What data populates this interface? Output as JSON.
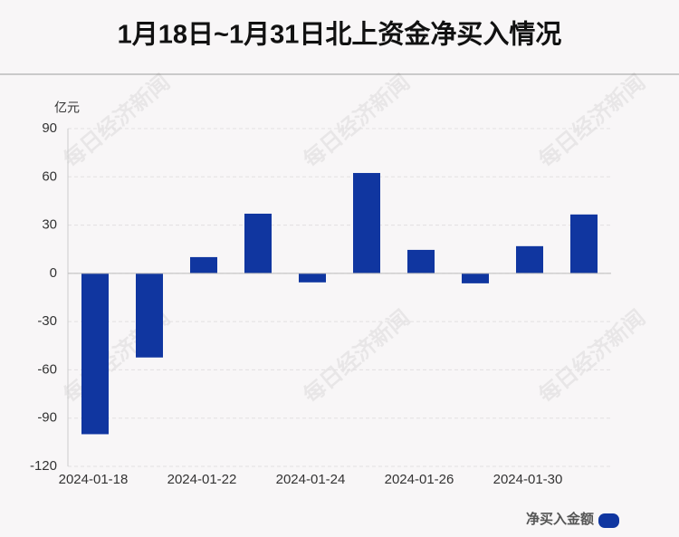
{
  "chart_data": {
    "type": "bar",
    "title": "1月18日~1月31日北上资金净买入情况",
    "y_unit": "亿元",
    "watermark": "每日经济新闻",
    "categories": [
      "2024-01-18",
      null,
      "2024-01-22",
      null,
      "2024-01-24",
      null,
      "2024-01-26",
      null,
      "2024-01-30",
      null
    ],
    "series": [
      {
        "name": "净买入金额",
        "color": "#1036a0",
        "values": [
          -100,
          -52.3,
          10.1,
          37.1,
          -5.6,
          62.4,
          14.6,
          -6.2,
          16.9,
          36.6
        ]
      }
    ],
    "ylim": [
      -120,
      90
    ],
    "yticks": [
      -120,
      -90,
      -60,
      -30,
      0,
      30,
      60,
      90
    ],
    "grid": true
  }
}
